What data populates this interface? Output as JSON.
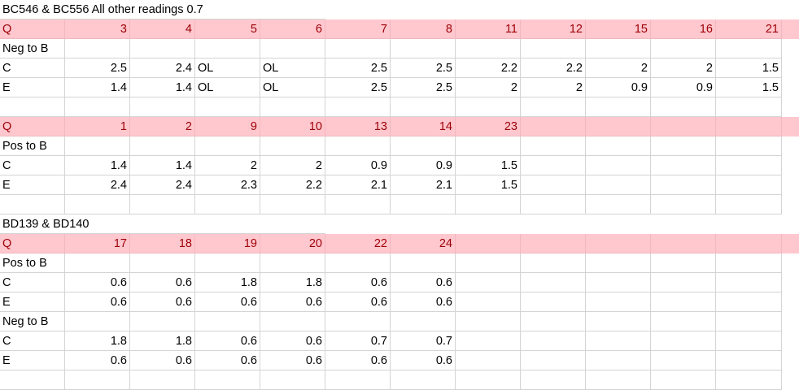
{
  "sheet": {
    "rows": [
      {
        "style": "plain",
        "cells": [
          {
            "c": 0,
            "v": "BC546 & BC556 All other readings 0.7",
            "span": true
          }
        ]
      },
      {
        "style": "pink",
        "cells": [
          {
            "c": 0,
            "v": "Q"
          },
          {
            "c": 1,
            "v": "3",
            "n": true
          },
          {
            "c": 2,
            "v": "4",
            "n": true
          },
          {
            "c": 3,
            "v": "5",
            "n": true
          },
          {
            "c": 4,
            "v": "6",
            "n": true
          },
          {
            "c": 5,
            "v": "7",
            "n": true
          },
          {
            "c": 6,
            "v": "8",
            "n": true
          },
          {
            "c": 7,
            "v": "11",
            "n": true
          },
          {
            "c": 8,
            "v": "12",
            "n": true
          },
          {
            "c": 9,
            "v": "15",
            "n": true
          },
          {
            "c": 10,
            "v": "16",
            "n": true
          },
          {
            "c": 11,
            "v": "21",
            "n": true
          }
        ]
      },
      {
        "style": "plain",
        "cells": [
          {
            "c": 0,
            "v": "Neg to B"
          }
        ]
      },
      {
        "style": "plain",
        "cells": [
          {
            "c": 0,
            "v": "C"
          },
          {
            "c": 1,
            "v": "2.5",
            "n": true
          },
          {
            "c": 2,
            "v": "2.4",
            "n": true
          },
          {
            "c": 3,
            "v": "OL"
          },
          {
            "c": 4,
            "v": "OL"
          },
          {
            "c": 5,
            "v": "2.5",
            "n": true
          },
          {
            "c": 6,
            "v": "2.5",
            "n": true
          },
          {
            "c": 7,
            "v": "2.2",
            "n": true
          },
          {
            "c": 8,
            "v": "2.2",
            "n": true
          },
          {
            "c": 9,
            "v": "2",
            "n": true
          },
          {
            "c": 10,
            "v": "2",
            "n": true
          },
          {
            "c": 11,
            "v": "1.5",
            "n": true
          }
        ]
      },
      {
        "style": "plain",
        "cells": [
          {
            "c": 0,
            "v": "E"
          },
          {
            "c": 1,
            "v": "1.4",
            "n": true
          },
          {
            "c": 2,
            "v": "1.4",
            "n": true
          },
          {
            "c": 3,
            "v": "OL"
          },
          {
            "c": 4,
            "v": "OL"
          },
          {
            "c": 5,
            "v": "2.5",
            "n": true
          },
          {
            "c": 6,
            "v": "2.5",
            "n": true
          },
          {
            "c": 7,
            "v": "2",
            "n": true
          },
          {
            "c": 8,
            "v": "2",
            "n": true
          },
          {
            "c": 9,
            "v": "0.9",
            "n": true
          },
          {
            "c": 10,
            "v": "0.9",
            "n": true
          },
          {
            "c": 11,
            "v": "1.5",
            "n": true
          }
        ]
      },
      {
        "style": "plain",
        "cells": []
      },
      {
        "style": "pink",
        "cells": [
          {
            "c": 0,
            "v": "Q"
          },
          {
            "c": 1,
            "v": "1",
            "n": true
          },
          {
            "c": 2,
            "v": "2",
            "n": true
          },
          {
            "c": 3,
            "v": "9",
            "n": true
          },
          {
            "c": 4,
            "v": "10",
            "n": true
          },
          {
            "c": 5,
            "v": "13",
            "n": true
          },
          {
            "c": 6,
            "v": "14",
            "n": true
          },
          {
            "c": 7,
            "v": "23",
            "n": true
          }
        ]
      },
      {
        "style": "plain",
        "cells": [
          {
            "c": 0,
            "v": "Pos to B"
          }
        ]
      },
      {
        "style": "plain",
        "cells": [
          {
            "c": 0,
            "v": "C"
          },
          {
            "c": 1,
            "v": "1.4",
            "n": true
          },
          {
            "c": 2,
            "v": "1.4",
            "n": true
          },
          {
            "c": 3,
            "v": "2",
            "n": true
          },
          {
            "c": 4,
            "v": "2",
            "n": true
          },
          {
            "c": 5,
            "v": "0.9",
            "n": true
          },
          {
            "c": 6,
            "v": "0.9",
            "n": true
          },
          {
            "c": 7,
            "v": "1.5",
            "n": true
          }
        ]
      },
      {
        "style": "plain",
        "cells": [
          {
            "c": 0,
            "v": "E"
          },
          {
            "c": 1,
            "v": "2.4",
            "n": true
          },
          {
            "c": 2,
            "v": "2.4",
            "n": true
          },
          {
            "c": 3,
            "v": "2.3",
            "n": true
          },
          {
            "c": 4,
            "v": "2.2",
            "n": true
          },
          {
            "c": 5,
            "v": "2.1",
            "n": true
          },
          {
            "c": 6,
            "v": "2.1",
            "n": true
          },
          {
            "c": 7,
            "v": "1.5",
            "n": true
          }
        ]
      },
      {
        "style": "plain",
        "cells": []
      },
      {
        "style": "plain",
        "cells": [
          {
            "c": 0,
            "v": "BD139 & BD140",
            "span": true
          }
        ]
      },
      {
        "style": "pink",
        "cells": [
          {
            "c": 0,
            "v": "Q"
          },
          {
            "c": 1,
            "v": "17",
            "n": true
          },
          {
            "c": 2,
            "v": "18",
            "n": true
          },
          {
            "c": 3,
            "v": "19",
            "n": true
          },
          {
            "c": 4,
            "v": "20",
            "n": true
          },
          {
            "c": 5,
            "v": "22",
            "n": true
          },
          {
            "c": 6,
            "v": "24",
            "n": true
          }
        ]
      },
      {
        "style": "plain",
        "cells": [
          {
            "c": 0,
            "v": "Pos to B"
          }
        ]
      },
      {
        "style": "plain",
        "cells": [
          {
            "c": 0,
            "v": "C"
          },
          {
            "c": 1,
            "v": "0.6",
            "n": true
          },
          {
            "c": 2,
            "v": "0.6",
            "n": true
          },
          {
            "c": 3,
            "v": "1.8",
            "n": true
          },
          {
            "c": 4,
            "v": "1.8",
            "n": true
          },
          {
            "c": 5,
            "v": "0.6",
            "n": true
          },
          {
            "c": 6,
            "v": "0.6",
            "n": true
          }
        ]
      },
      {
        "style": "plain",
        "cells": [
          {
            "c": 0,
            "v": "E"
          },
          {
            "c": 1,
            "v": "0.6",
            "n": true
          },
          {
            "c": 2,
            "v": "0.6",
            "n": true
          },
          {
            "c": 3,
            "v": "0.6",
            "n": true
          },
          {
            "c": 4,
            "v": "0.6",
            "n": true
          },
          {
            "c": 5,
            "v": "0.6",
            "n": true
          },
          {
            "c": 6,
            "v": "0.6",
            "n": true
          }
        ]
      },
      {
        "style": "plain",
        "cells": [
          {
            "c": 0,
            "v": "Neg to B"
          }
        ]
      },
      {
        "style": "plain",
        "cells": [
          {
            "c": 0,
            "v": "C"
          },
          {
            "c": 1,
            "v": "1.8",
            "n": true
          },
          {
            "c": 2,
            "v": "1.8",
            "n": true
          },
          {
            "c": 3,
            "v": "0.6",
            "n": true
          },
          {
            "c": 4,
            "v": "0.6",
            "n": true
          },
          {
            "c": 5,
            "v": "0.7",
            "n": true
          },
          {
            "c": 6,
            "v": "0.7",
            "n": true
          }
        ]
      },
      {
        "style": "plain",
        "cells": [
          {
            "c": 0,
            "v": "E"
          },
          {
            "c": 1,
            "v": "0.6",
            "n": true
          },
          {
            "c": 2,
            "v": "0.6",
            "n": true
          },
          {
            "c": 3,
            "v": "0.6",
            "n": true
          },
          {
            "c": 4,
            "v": "0.6",
            "n": true
          },
          {
            "c": 5,
            "v": "0.6",
            "n": true
          },
          {
            "c": 6,
            "v": "0.6",
            "n": true
          }
        ]
      },
      {
        "style": "plain",
        "cells": []
      }
    ],
    "colors": {
      "pink_fill": "#ffc7ce",
      "pink_text": "#9c0006",
      "gridline": "#d4d4d4"
    }
  }
}
